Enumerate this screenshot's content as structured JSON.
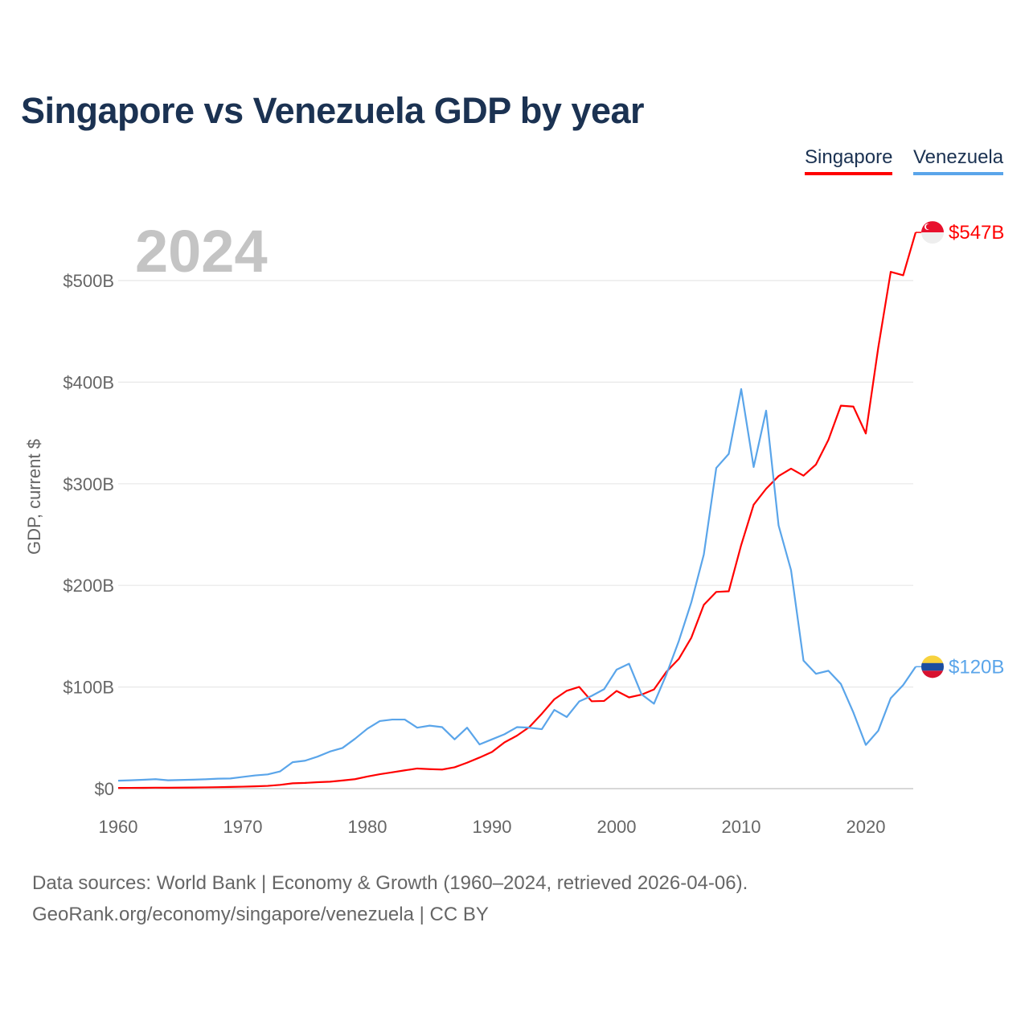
{
  "chart_data": {
    "type": "line",
    "title": "Singapore vs Venezuela GDP by year",
    "xlabel": "",
    "ylabel": "GDP, current $",
    "ylim": [
      0,
      560
    ],
    "xlim": [
      1960,
      2024
    ],
    "y_ticks": [
      0,
      100,
      200,
      300,
      400,
      500
    ],
    "y_tick_labels": [
      "$0",
      "$100B",
      "$200B",
      "$300B",
      "$400B",
      "$500B"
    ],
    "x_ticks": [
      1960,
      1970,
      1980,
      1990,
      2000,
      2010,
      2020
    ],
    "x_tick_labels": [
      "1960",
      "1970",
      "1980",
      "1990",
      "2000",
      "2010",
      "2020"
    ],
    "grid": true,
    "legend_position": "top-right",
    "year_label": "2024",
    "start_year": 1960,
    "series": [
      {
        "name": "Singapore",
        "color": "#ff0000",
        "end_label": "$547B",
        "flag": "singapore-flag",
        "values": [
          0.7,
          0.76,
          0.82,
          0.92,
          0.89,
          0.97,
          1.09,
          1.24,
          1.43,
          1.7,
          1.92,
          2.26,
          2.72,
          3.69,
          5.22,
          5.63,
          6.33,
          6.81,
          8.0,
          9.3,
          11.9,
          14.2,
          16.1,
          18.0,
          19.8,
          19.2,
          18.8,
          21.0,
          25.5,
          30.6,
          36.1,
          45.5,
          52.1,
          60.6,
          73.7,
          87.9,
          96.3,
          100.1,
          86.0,
          86.3,
          96.1,
          89.8,
          92.5,
          97.6,
          115.0,
          127.8,
          148.6,
          180.9,
          193.6,
          194.2,
          239.8,
          279.4,
          295.1,
          307.6,
          314.9,
          308.0,
          319.0,
          343.3,
          376.9,
          376.0,
          349.5,
          434.1,
          508.6,
          505.2,
          547.4
        ]
      },
      {
        "name": "Venezuela",
        "color": "#5aa5ea",
        "end_label": "$120B",
        "flag": "venezuela-flag",
        "values": [
          7.8,
          8.2,
          8.7,
          9.3,
          8.2,
          8.5,
          8.8,
          9.2,
          9.8,
          10.0,
          11.5,
          13.0,
          14.0,
          17.0,
          26.0,
          27.5,
          31.5,
          36.5,
          40.0,
          49.0,
          59.0,
          66.5,
          68.0,
          68.0,
          60.0,
          62.0,
          60.5,
          48.5,
          60.0,
          43.5,
          48.5,
          53.5,
          60.5,
          60.0,
          58.5,
          77.5,
          70.5,
          85.8,
          91.3,
          97.9,
          117.1,
          122.9,
          92.9,
          83.6,
          112.5,
          145.5,
          183.5,
          230.4,
          315.6,
          329.4,
          393.2,
          316.5,
          372.0,
          259.0,
          215.0,
          126.0,
          113.0,
          116.0,
          103.0,
          75.0,
          43.0,
          57.0,
          89.0,
          102.0,
          120.0
        ]
      }
    ]
  },
  "legend": {
    "singapore": "Singapore",
    "venezuela": "Venezuela"
  },
  "footer": {
    "line1": "Data sources: World Bank | Economy & Growth (1960–2024, retrieved 2026-04-06).",
    "line2": "GeoRank.org/economy/singapore/venezuela | CC BY"
  }
}
